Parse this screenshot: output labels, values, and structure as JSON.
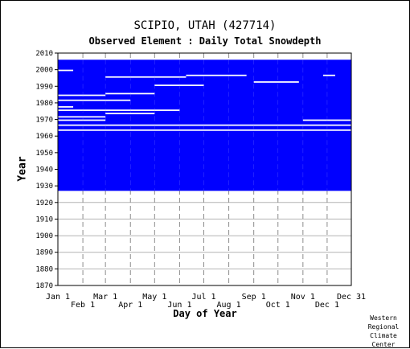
{
  "chart_data": {
    "type": "heatmap",
    "title": "SCIPIO, UTAH   (427714)",
    "subtitle": "Observed Element : Daily Total Snowdepth",
    "xlabel": "Day of Year",
    "ylabel": "Year",
    "xlim": [
      1,
      365
    ],
    "ylim": [
      1870,
      2010
    ],
    "y_ticks": [
      1870,
      1880,
      1890,
      1900,
      1910,
      1920,
      1930,
      1940,
      1950,
      1960,
      1970,
      1980,
      1990,
      2000,
      2010
    ],
    "x_ticks_upper": [
      {
        "label": "Jan 1",
        "day": 1
      },
      {
        "label": "Mar 1",
        "day": 60
      },
      {
        "label": "May 1",
        "day": 121
      },
      {
        "label": "Jul 1",
        "day": 182
      },
      {
        "label": "Sep 1",
        "day": 244
      },
      {
        "label": "Nov 1",
        "day": 305
      },
      {
        "label": "Dec 31",
        "day": 365
      }
    ],
    "x_ticks_lower": [
      {
        "label": "Feb 1",
        "day": 32
      },
      {
        "label": "Apr 1",
        "day": 91
      },
      {
        "label": "Jun 1",
        "day": 152
      },
      {
        "label": "Aug 1",
        "day": 213
      },
      {
        "label": "Oct 1",
        "day": 274
      },
      {
        "label": "Dec 1",
        "day": 335
      }
    ],
    "data_block": {
      "year_start": 1927,
      "year_end": 2005
    },
    "missing_years": [
      {
        "year": 1963,
        "day_start": 1,
        "day_end": 365
      },
      {
        "year": 1966,
        "day_start": 1,
        "day_end": 365
      },
      {
        "year": 1969,
        "day_start": 1,
        "day_end": 60
      },
      {
        "year": 1969,
        "day_start": 305,
        "day_end": 365
      },
      {
        "year": 1971,
        "day_start": 1,
        "day_end": 60
      },
      {
        "year": 1973,
        "day_start": 60,
        "day_end": 121
      },
      {
        "year": 1975,
        "day_start": 1,
        "day_end": 152
      },
      {
        "year": 1977,
        "day_start": 1,
        "day_end": 20
      },
      {
        "year": 1981,
        "day_start": 1,
        "day_end": 91
      },
      {
        "year": 1984,
        "day_start": 1,
        "day_end": 60
      },
      {
        "year": 1985,
        "day_start": 60,
        "day_end": 121
      },
      {
        "year": 1990,
        "day_start": 121,
        "day_end": 182
      },
      {
        "year": 1992,
        "day_start": 244,
        "day_end": 300
      },
      {
        "year": 1995,
        "day_start": 60,
        "day_end": 160
      },
      {
        "year": 1996,
        "day_start": 160,
        "day_end": 235
      },
      {
        "year": 1996,
        "day_start": 330,
        "day_end": 345
      },
      {
        "year": 1999,
        "day_start": 1,
        "day_end": 20
      }
    ],
    "present_color": "#0000FF",
    "missing_color": "#FFFFFF",
    "grid": true
  },
  "credit": [
    "Western",
    "Regional",
    "Climate",
    "Center"
  ]
}
